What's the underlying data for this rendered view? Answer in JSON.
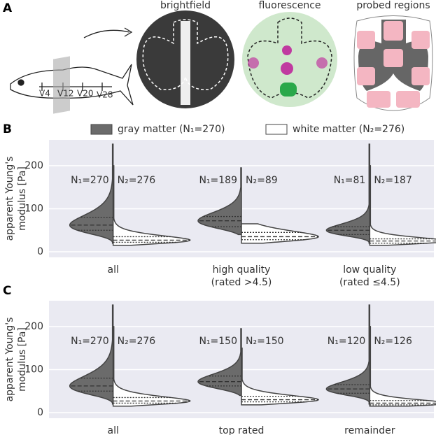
{
  "panel_labels": [
    "A",
    "B",
    "C"
  ],
  "panel_a": {
    "titles": [
      "brightfield",
      "fluorescence",
      "probed regions"
    ],
    "vertebrae": [
      "V4",
      "V12",
      "V20",
      "V28"
    ]
  },
  "chart_data": [
    {
      "type": "violin",
      "ylabel": [
        "apparent Young's",
        "modulus [Pa]"
      ],
      "categories": [
        [
          "all"
        ],
        [
          "high quality",
          "(rated >4.5)"
        ],
        [
          "low quality",
          "(rated ≤4.5)"
        ]
      ],
      "ylim": [
        -13,
        260
      ],
      "yticks": [
        0,
        100,
        200
      ],
      "grid": true,
      "legend": "top",
      "series": [
        {
          "name": "gray matter (N₁=270)",
          "color": "#6b6b6b",
          "n_labels": [
            "N₁=270",
            "N₁=189",
            "N₁=81"
          ],
          "min": [
            20,
            40,
            20
          ],
          "q1": [
            50,
            58,
            40
          ],
          "medians": [
            62,
            72,
            50
          ],
          "q3": [
            80,
            82,
            58
          ],
          "max": [
            250,
            195,
            250
          ]
        },
        {
          "name": "white matter (N₂=276)",
          "color": "#ffffff",
          "n_labels": [
            "N₂=276",
            "N₂=89",
            "N₂=187"
          ],
          "min": [
            15,
            20,
            15
          ],
          "q1": [
            22,
            28,
            20
          ],
          "medians": [
            27,
            35,
            25
          ],
          "q3": [
            35,
            45,
            30
          ],
          "max": [
            200,
            65,
            200
          ]
        }
      ]
    },
    {
      "type": "violin",
      "ylabel": [
        "apparent Young's",
        "modulus [Pa]"
      ],
      "categories": [
        [
          "all"
        ],
        [
          "top rated"
        ],
        [
          "remainder"
        ]
      ],
      "ylim": [
        -13,
        260
      ],
      "yticks": [
        0,
        100,
        200
      ],
      "grid": true,
      "series": [
        {
          "color": "#6b6b6b",
          "n_labels": [
            "N₁=270",
            "N₁=150",
            "N₁=120"
          ],
          "min": [
            20,
            40,
            20
          ],
          "q1": [
            50,
            62,
            45
          ],
          "medians": [
            62,
            72,
            55
          ],
          "q3": [
            80,
            85,
            65
          ],
          "max": [
            250,
            195,
            250
          ]
        },
        {
          "color": "#ffffff",
          "n_labels": [
            "N₂=276",
            "N₂=150",
            "N₂=126"
          ],
          "min": [
            15,
            18,
            15
          ],
          "q1": [
            22,
            25,
            18
          ],
          "medians": [
            27,
            30,
            22
          ],
          "q3": [
            35,
            38,
            28
          ],
          "max": [
            200,
            150,
            200
          ]
        }
      ]
    }
  ]
}
